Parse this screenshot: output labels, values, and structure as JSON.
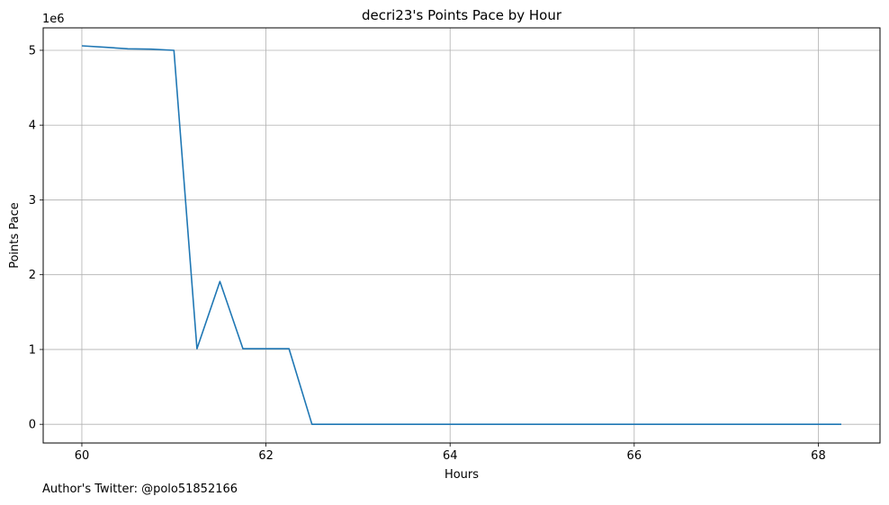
{
  "chart_data": {
    "type": "line",
    "title": "decri23's Points Pace by Hour",
    "xlabel": "Hours",
    "ylabel": "Points Pace",
    "y_offset_label": "1e6",
    "xlim": [
      59.58,
      68.67
    ],
    "ylim": [
      -250000,
      5300000
    ],
    "xticks": [
      60,
      62,
      64,
      66,
      68
    ],
    "xtick_labels": [
      "60",
      "62",
      "64",
      "66",
      "68"
    ],
    "yticks": [
      0,
      1000000,
      2000000,
      3000000,
      4000000,
      5000000
    ],
    "ytick_labels": [
      "0",
      "1",
      "2",
      "3",
      "4",
      "5"
    ],
    "grid": true,
    "line_color": "#1f77b4",
    "series": [
      {
        "x": [
          60.0,
          60.25,
          60.5,
          60.75,
          61.0,
          61.25,
          61.5,
          61.75,
          62.0,
          62.25,
          62.5,
          62.75,
          63.0,
          63.25,
          63.5,
          63.75,
          64.0,
          64.25,
          64.5,
          64.75,
          65.0,
          65.25,
          65.5,
          65.75,
          66.0,
          66.25,
          66.5,
          66.75,
          67.0,
          67.25,
          67.5,
          67.75,
          68.0,
          68.25
        ],
        "y": [
          5060000,
          5040000,
          5020000,
          5015000,
          5000000,
          1010000,
          1910000,
          1010000,
          1010000,
          1010000,
          0,
          0,
          0,
          0,
          0,
          0,
          0,
          0,
          0,
          0,
          0,
          0,
          0,
          0,
          0,
          0,
          0,
          0,
          0,
          0,
          0,
          0,
          0,
          0
        ]
      }
    ]
  },
  "footer": {
    "note": "Author's Twitter: @polo51852166"
  }
}
